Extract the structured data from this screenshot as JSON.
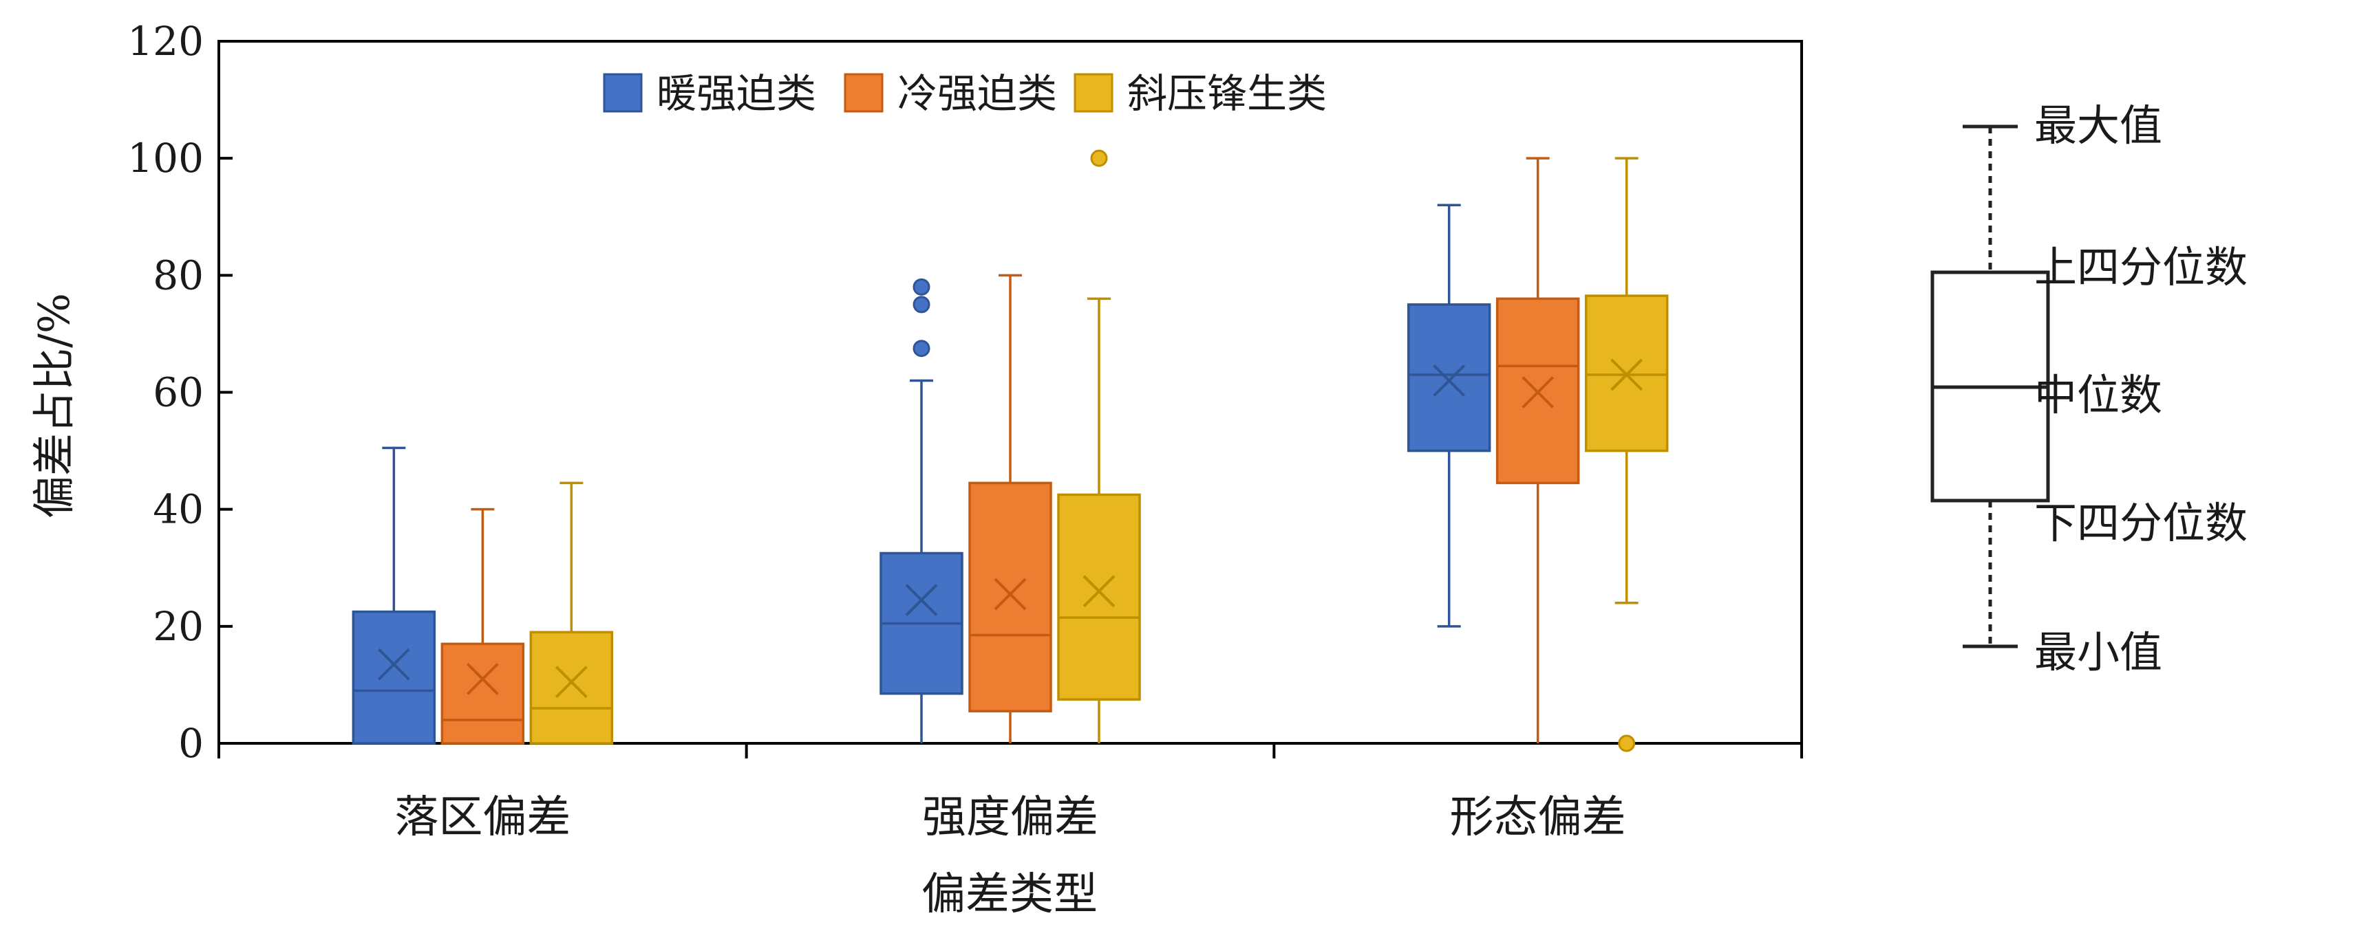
{
  "chart_data": {
    "type": "boxplot",
    "xlabel": "偏差类型",
    "ylabel": "偏差占比/%",
    "ylim": [
      0,
      120
    ],
    "yticks": [
      0,
      20,
      40,
      60,
      80,
      100,
      120
    ],
    "categories": [
      "落区偏差",
      "强度偏差",
      "形态偏差"
    ],
    "legend": {
      "position": "top"
    },
    "series": [
      {
        "name": "暖强迫类",
        "color": "#4472c4",
        "stroke": "#2f5597",
        "boxes": [
          {
            "min": 0,
            "q1": 0,
            "median": 9,
            "q3": 22.5,
            "max": 50.5,
            "mean": 13.5,
            "outliers": []
          },
          {
            "min": 0,
            "q1": 8.5,
            "median": 20.5,
            "q3": 32.5,
            "max": 62,
            "mean": 24.5,
            "outliers": [
              67.5,
              75,
              78
            ]
          },
          {
            "min": 20,
            "q1": 50,
            "median": 63,
            "q3": 75,
            "max": 92,
            "mean": 62,
            "outliers": []
          }
        ]
      },
      {
        "name": "冷强迫类",
        "color": "#ed7d31",
        "stroke": "#c55a11",
        "boxes": [
          {
            "min": 0,
            "q1": 0,
            "median": 4,
            "q3": 17,
            "max": 40,
            "mean": 11,
            "outliers": []
          },
          {
            "min": 0,
            "q1": 5.5,
            "median": 18.5,
            "q3": 44.5,
            "max": 80,
            "mean": 25.5,
            "outliers": []
          },
          {
            "min": 0,
            "q1": 44.5,
            "median": 64.5,
            "q3": 76,
            "max": 100,
            "mean": 60,
            "outliers": []
          }
        ]
      },
      {
        "name": "斜压锋生类",
        "color": "#e8b61e",
        "stroke": "#bf8f00",
        "boxes": [
          {
            "min": 0,
            "q1": 0,
            "median": 6,
            "q3": 19,
            "max": 44.5,
            "mean": 10.5,
            "outliers": []
          },
          {
            "min": 0,
            "q1": 7.5,
            "median": 21.5,
            "q3": 42.5,
            "max": 76,
            "mean": 26,
            "outliers": [
              100
            ]
          },
          {
            "min": 24,
            "q1": 50,
            "median": 63,
            "q3": 76.5,
            "max": 100,
            "mean": 63,
            "outliers": [
              0
            ]
          }
        ]
      }
    ],
    "key_labels": {
      "max": "最大值",
      "q3": "上四分位数",
      "median": "中位数",
      "q1": "下四分位数",
      "min": "最小值"
    }
  }
}
